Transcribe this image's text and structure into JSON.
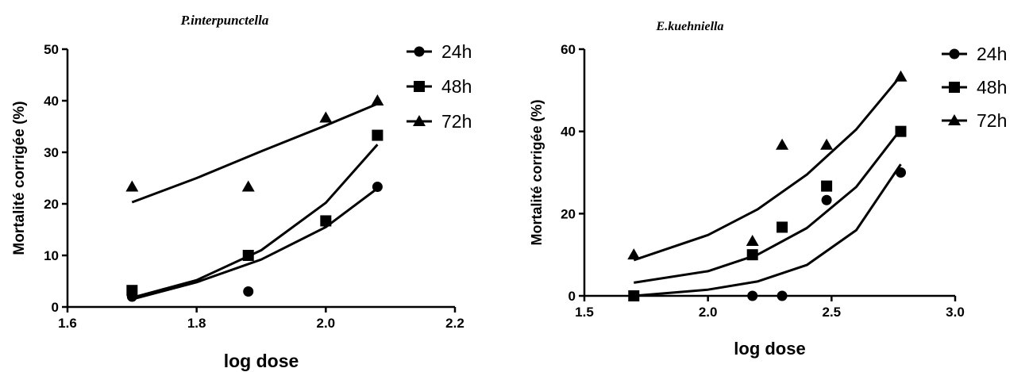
{
  "chart_data": [
    {
      "type": "scatter",
      "title": "P.interpunctella",
      "xlabel": "log dose",
      "ylabel": "Mortalité corrigée (%)",
      "xlim": [
        1.6,
        2.2
      ],
      "ylim": [
        0,
        50
      ],
      "xticks": [
        "1.6",
        "1.8",
        "2.0",
        "2.2"
      ],
      "yticks": [
        "0",
        "10",
        "20",
        "30",
        "40",
        "50"
      ],
      "legend_position": "right",
      "series": [
        {
          "name": "24h",
          "marker": "circle",
          "x": [
            1.7,
            1.88,
            2.0,
            2.08
          ],
          "y": [
            2,
            3,
            16.5,
            23.3
          ],
          "fit": [
            [
              1.7,
              1.5
            ],
            [
              1.8,
              4.8
            ],
            [
              1.9,
              9.2
            ],
            [
              2.0,
              15.5
            ],
            [
              2.08,
              23.0
            ]
          ]
        },
        {
          "name": "48h",
          "marker": "square",
          "x": [
            1.7,
            1.88,
            2.0,
            2.08
          ],
          "y": [
            3.2,
            10,
            16.7,
            33.3
          ],
          "fit": [
            [
              1.7,
              1.8
            ],
            [
              1.8,
              5.2
            ],
            [
              1.9,
              11.0
            ],
            [
              2.0,
              20.2
            ],
            [
              2.08,
              31.5
            ]
          ]
        },
        {
          "name": "72h",
          "marker": "triangle",
          "x": [
            1.7,
            1.88,
            2.0,
            2.08
          ],
          "y": [
            23.3,
            23.3,
            36.7,
            40
          ],
          "fit": [
            [
              1.7,
              20.3
            ],
            [
              1.8,
              25.0
            ],
            [
              1.9,
              30.2
            ],
            [
              2.0,
              35.2
            ],
            [
              2.08,
              39.4
            ]
          ]
        }
      ]
    },
    {
      "type": "scatter",
      "title": "E.kuehniella",
      "xlabel": "log dose",
      "ylabel": "Mortalité corrigée (%)",
      "xlim": [
        1.5,
        3.0
      ],
      "ylim": [
        0,
        60
      ],
      "xticks": [
        "1.5",
        "2.0",
        "2.5",
        "3.0"
      ],
      "yticks": [
        "0",
        "20",
        "40",
        "60"
      ],
      "legend_position": "right",
      "series": [
        {
          "name": "24h",
          "marker": "circle",
          "x": [
            1.7,
            2.18,
            2.3,
            2.48,
            2.78
          ],
          "y": [
            0,
            0,
            0,
            23.3,
            30
          ],
          "fit": [
            [
              1.7,
              0
            ],
            [
              2.0,
              1.5
            ],
            [
              2.2,
              3.5
            ],
            [
              2.4,
              7.5
            ],
            [
              2.6,
              16.0
            ],
            [
              2.78,
              32.0
            ]
          ]
        },
        {
          "name": "48h",
          "marker": "square",
          "x": [
            1.7,
            2.18,
            2.3,
            2.48,
            2.78
          ],
          "y": [
            0,
            10,
            16.7,
            26.7,
            40
          ],
          "fit": [
            [
              1.7,
              3.2
            ],
            [
              2.0,
              6.0
            ],
            [
              2.2,
              10.0
            ],
            [
              2.4,
              16.5
            ],
            [
              2.6,
              26.5
            ],
            [
              2.78,
              40.5
            ]
          ]
        },
        {
          "name": "72h",
          "marker": "triangle",
          "x": [
            1.7,
            2.18,
            2.3,
            2.48,
            2.78
          ],
          "y": [
            10,
            13.3,
            36.7,
            36.7,
            53.3
          ],
          "fit": [
            [
              1.7,
              8.7
            ],
            [
              2.0,
              14.8
            ],
            [
              2.2,
              21.0
            ],
            [
              2.4,
              29.5
            ],
            [
              2.6,
              40.5
            ],
            [
              2.78,
              53.5
            ]
          ]
        }
      ]
    }
  ]
}
